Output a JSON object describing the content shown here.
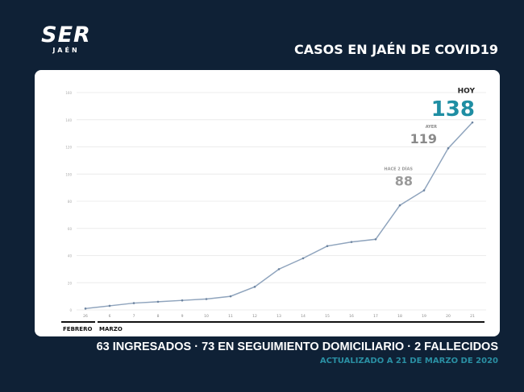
{
  "header": {
    "logo_text": "SER",
    "logo_sub": "JAÉN",
    "title": "CASOS EN JAÉN DE COVID19"
  },
  "chart_data": {
    "type": "line",
    "title": "CASOS EN JAÉN DE COVID19",
    "categories": [
      "26",
      "6",
      "7",
      "8",
      "9",
      "10",
      "11",
      "12",
      "13",
      "14",
      "15",
      "16",
      "17",
      "18",
      "19",
      "20",
      "21"
    ],
    "values": [
      1,
      3,
      5,
      6,
      7,
      8,
      10,
      17,
      30,
      38,
      47,
      50,
      52,
      77,
      88,
      119,
      138
    ],
    "ylim": [
      0,
      160
    ],
    "yticks": [
      0,
      20,
      40,
      60,
      80,
      100,
      120,
      140,
      160
    ],
    "grid": true,
    "line_color": "#8fa4bd",
    "month_labels": [
      {
        "label": "FEBRERO",
        "from": "26",
        "to": "26"
      },
      {
        "label": "MARZO",
        "from": "6",
        "to": "21"
      }
    ],
    "annotations": [
      {
        "x": "19",
        "label": "HACE 2 DÍAS",
        "value": "88",
        "color": "#9a9a9a"
      },
      {
        "x": "20",
        "label": "AYER",
        "value": "119",
        "color": "#8a8a8a"
      },
      {
        "x": "21",
        "label": "HOY",
        "value": "138",
        "color": "#1f8ea3"
      }
    ]
  },
  "footer": {
    "summary": "63 INGRESADOS · 73 EN SEGUIMIENTO DOMICILIARIO · 2 FALLECIDOS",
    "updated": "ACTUALIZADO A 21 DE MARZO DE 2020"
  }
}
